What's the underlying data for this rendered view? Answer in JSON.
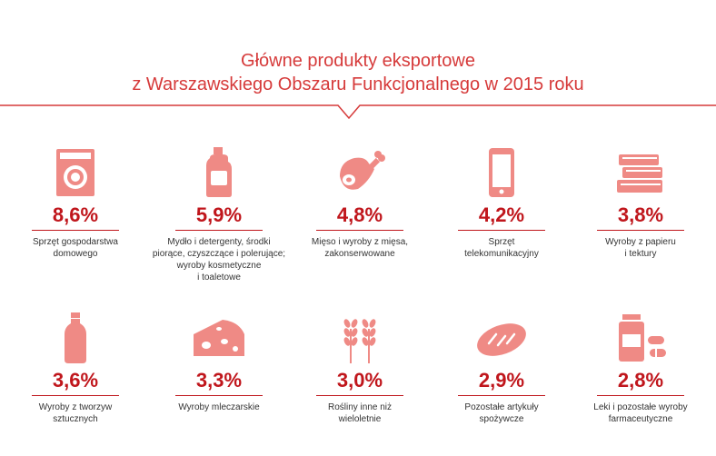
{
  "title": {
    "line1": "Główne produkty eksportowe",
    "line2": "z Warszawskiego Obszaru Funkcjonalnego w  2015 roku"
  },
  "colors": {
    "accent": "#c0161c",
    "icon": "#ef8a85",
    "title": "#d63a3a"
  },
  "items": [
    {
      "icon": "washing-machine-icon",
      "percent": "8,6%",
      "label": "Sprzęt gospodarstwa\ndomowego",
      "share": 8.6
    },
    {
      "icon": "detergent-bottle-icon",
      "percent": "5,9%",
      "label": "Mydło i detergenty, środki\npiorące, czyszczące i polerujące;\nwyroby kosmetyczne\ni toaletowe",
      "share": 5.9
    },
    {
      "icon": "meat-leg-icon",
      "percent": "4,8%",
      "label": "Mięso i wyroby z mięsa,\nzakonserwowane",
      "share": 4.8
    },
    {
      "icon": "smartphone-icon",
      "percent": "4,2%",
      "label": "Sprzęt\ntelekomunikacyjny",
      "share": 4.2
    },
    {
      "icon": "books-icon",
      "percent": "3,8%",
      "label": "Wyroby z papieru\ni tektury",
      "share": 3.8
    },
    {
      "icon": "plastic-bottle-icon",
      "percent": "3,6%",
      "label": "Wyroby z tworzyw\nsztucznych",
      "share": 3.6
    },
    {
      "icon": "cheese-icon",
      "percent": "3,3%",
      "label": "Wyroby mleczarskie",
      "share": 3.3
    },
    {
      "icon": "wheat-icon",
      "percent": "3,0%",
      "label": "Rośliny inne niż\nwieloletnie",
      "share": 3.0
    },
    {
      "icon": "bread-icon",
      "percent": "2,9%",
      "label": "Pozostałe artykuły\nspożywcze",
      "share": 2.9
    },
    {
      "icon": "medicine-icon",
      "percent": "2,8%",
      "label": "Leki i pozostałe wyroby\nfarmaceutyczne",
      "share": 2.8
    }
  ]
}
